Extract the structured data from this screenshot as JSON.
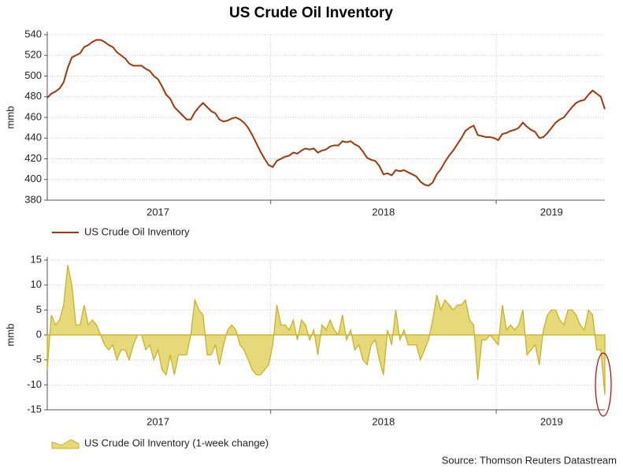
{
  "title": "US Crude Oil Inventory",
  "source": "Source: Thomson Reuters Datastream",
  "chart_data": [
    {
      "type": "line",
      "ylabel": "mmb",
      "categories": [
        null,
        null,
        null,
        null,
        null,
        null,
        null,
        null,
        null,
        null,
        null,
        null,
        null,
        null,
        null,
        null,
        null,
        null,
        null,
        null,
        null,
        null,
        null,
        null,
        null,
        null,
        null,
        "2017",
        null,
        null,
        null,
        null,
        null,
        null,
        null,
        null,
        null,
        null,
        null,
        null,
        null,
        null,
        null,
        null,
        null,
        null,
        null,
        null,
        null,
        null,
        null,
        null,
        null,
        null,
        null,
        null,
        null,
        null,
        null,
        null,
        null,
        null,
        null,
        null,
        null,
        null,
        null,
        null,
        null,
        null,
        null,
        null,
        null,
        null,
        null,
        null,
        null,
        null,
        null,
        null,
        null,
        null,
        "2018",
        null,
        null,
        null,
        null,
        null,
        null,
        null,
        null,
        null,
        null,
        null,
        null,
        null,
        null,
        null,
        null,
        null,
        null,
        null,
        null,
        null,
        null,
        null,
        null,
        null,
        null,
        null,
        null,
        null,
        null,
        null,
        null,
        null,
        null,
        null,
        null,
        null,
        null,
        null,
        null,
        "2019",
        null,
        null,
        null,
        null,
        null,
        null,
        null,
        null,
        null,
        null,
        null,
        null,
        null
      ],
      "series": [
        {
          "name": "US Crude Oil Inventory",
          "color": "#a0380c",
          "values": [
            479,
            483,
            485,
            488,
            494,
            508,
            518,
            520,
            522,
            528,
            530,
            533,
            535,
            535,
            533,
            530,
            528,
            523,
            520,
            517,
            512,
            510,
            510,
            510,
            507,
            505,
            500,
            497,
            490,
            482,
            478,
            470,
            466,
            462,
            458,
            458,
            465,
            470,
            474,
            470,
            466,
            464,
            458,
            456,
            457,
            459,
            460,
            458,
            455,
            450,
            443,
            435,
            427,
            420,
            414,
            412,
            418,
            420,
            422,
            423,
            426,
            425,
            428,
            430,
            429,
            430,
            426,
            428,
            429,
            432,
            433,
            433,
            437,
            436,
            437,
            434,
            432,
            427,
            421,
            419,
            418,
            413,
            405,
            406,
            404,
            409,
            408,
            409,
            407,
            405,
            403,
            398,
            395,
            394,
            397,
            405,
            410,
            417,
            423,
            428,
            434,
            440,
            447,
            450,
            452,
            443,
            442,
            441,
            441,
            440,
            438,
            444,
            445,
            447,
            448,
            450,
            455,
            451,
            448,
            446,
            440,
            441,
            445,
            450,
            455,
            458,
            460,
            465,
            470,
            474,
            476,
            477,
            482,
            486,
            483,
            480,
            468
          ]
        }
      ],
      "ylim": [
        380,
        540
      ],
      "yticks": [
        380,
        400,
        420,
        440,
        460,
        480,
        500,
        520,
        540
      ],
      "grid": true
    },
    {
      "type": "area",
      "ylabel": "mmb",
      "categories": [
        null,
        null,
        null,
        null,
        null,
        null,
        null,
        null,
        null,
        null,
        null,
        null,
        null,
        null,
        null,
        null,
        null,
        null,
        null,
        null,
        null,
        null,
        null,
        null,
        null,
        null,
        null,
        "2017",
        null,
        null,
        null,
        null,
        null,
        null,
        null,
        null,
        null,
        null,
        null,
        null,
        null,
        null,
        null,
        null,
        null,
        null,
        null,
        null,
        null,
        null,
        null,
        null,
        null,
        null,
        null,
        null,
        null,
        null,
        null,
        null,
        null,
        null,
        null,
        null,
        null,
        null,
        null,
        null,
        null,
        null,
        null,
        null,
        null,
        null,
        null,
        null,
        null,
        null,
        null,
        null,
        null,
        null,
        "2018",
        null,
        null,
        null,
        null,
        null,
        null,
        null,
        null,
        null,
        null,
        null,
        null,
        null,
        null,
        null,
        null,
        null,
        null,
        null,
        null,
        null,
        null,
        null,
        null,
        null,
        null,
        null,
        null,
        null,
        null,
        null,
        null,
        null,
        null,
        null,
        null,
        null,
        null,
        null,
        null,
        "2019",
        null,
        null,
        null,
        null,
        null,
        null,
        null,
        null,
        null,
        null,
        null,
        null,
        null
      ],
      "series": [
        {
          "name": "US Crude Oil Inventory (1-week change)",
          "color": "#e6d97a",
          "values": [
            -7,
            4,
            2,
            3,
            6,
            14,
            10,
            2,
            2,
            6,
            2,
            3,
            2,
            0,
            -2,
            -3,
            -2,
            -5,
            -3,
            -3,
            -5,
            -2,
            0,
            0,
            -3,
            -2,
            -5,
            -3,
            -7,
            -8,
            -4,
            -8,
            -4,
            -4,
            -4,
            0,
            7,
            5,
            4,
            -4,
            -4,
            -2,
            -6,
            -2,
            1,
            2,
            1,
            -2,
            -3,
            -5,
            -7,
            -8,
            -8,
            -7,
            -6,
            -2,
            6,
            2,
            2,
            1,
            3,
            -1,
            3,
            2,
            -1,
            1,
            -4,
            2,
            1,
            3,
            1,
            0,
            4,
            -1,
            1,
            -3,
            -2,
            -5,
            -6,
            -2,
            -1,
            -5,
            -8,
            1,
            -2,
            5,
            -1,
            1,
            -2,
            -2,
            -2,
            -5,
            -3,
            -1,
            3,
            8,
            5,
            7,
            6,
            5,
            6,
            6,
            7,
            3,
            2,
            -9,
            -1,
            -1,
            0,
            -1,
            -2,
            6,
            1,
            2,
            1,
            2,
            5,
            -4,
            -3,
            -2,
            -6,
            1,
            4,
            5,
            5,
            3,
            2,
            5,
            5,
            4,
            2,
            1,
            5,
            4,
            -3,
            -3,
            -12
          ]
        }
      ],
      "ylim": [
        -15,
        15
      ],
      "yticks": [
        -15,
        -10,
        -5,
        0,
        5,
        10,
        15
      ],
      "grid": true
    }
  ]
}
